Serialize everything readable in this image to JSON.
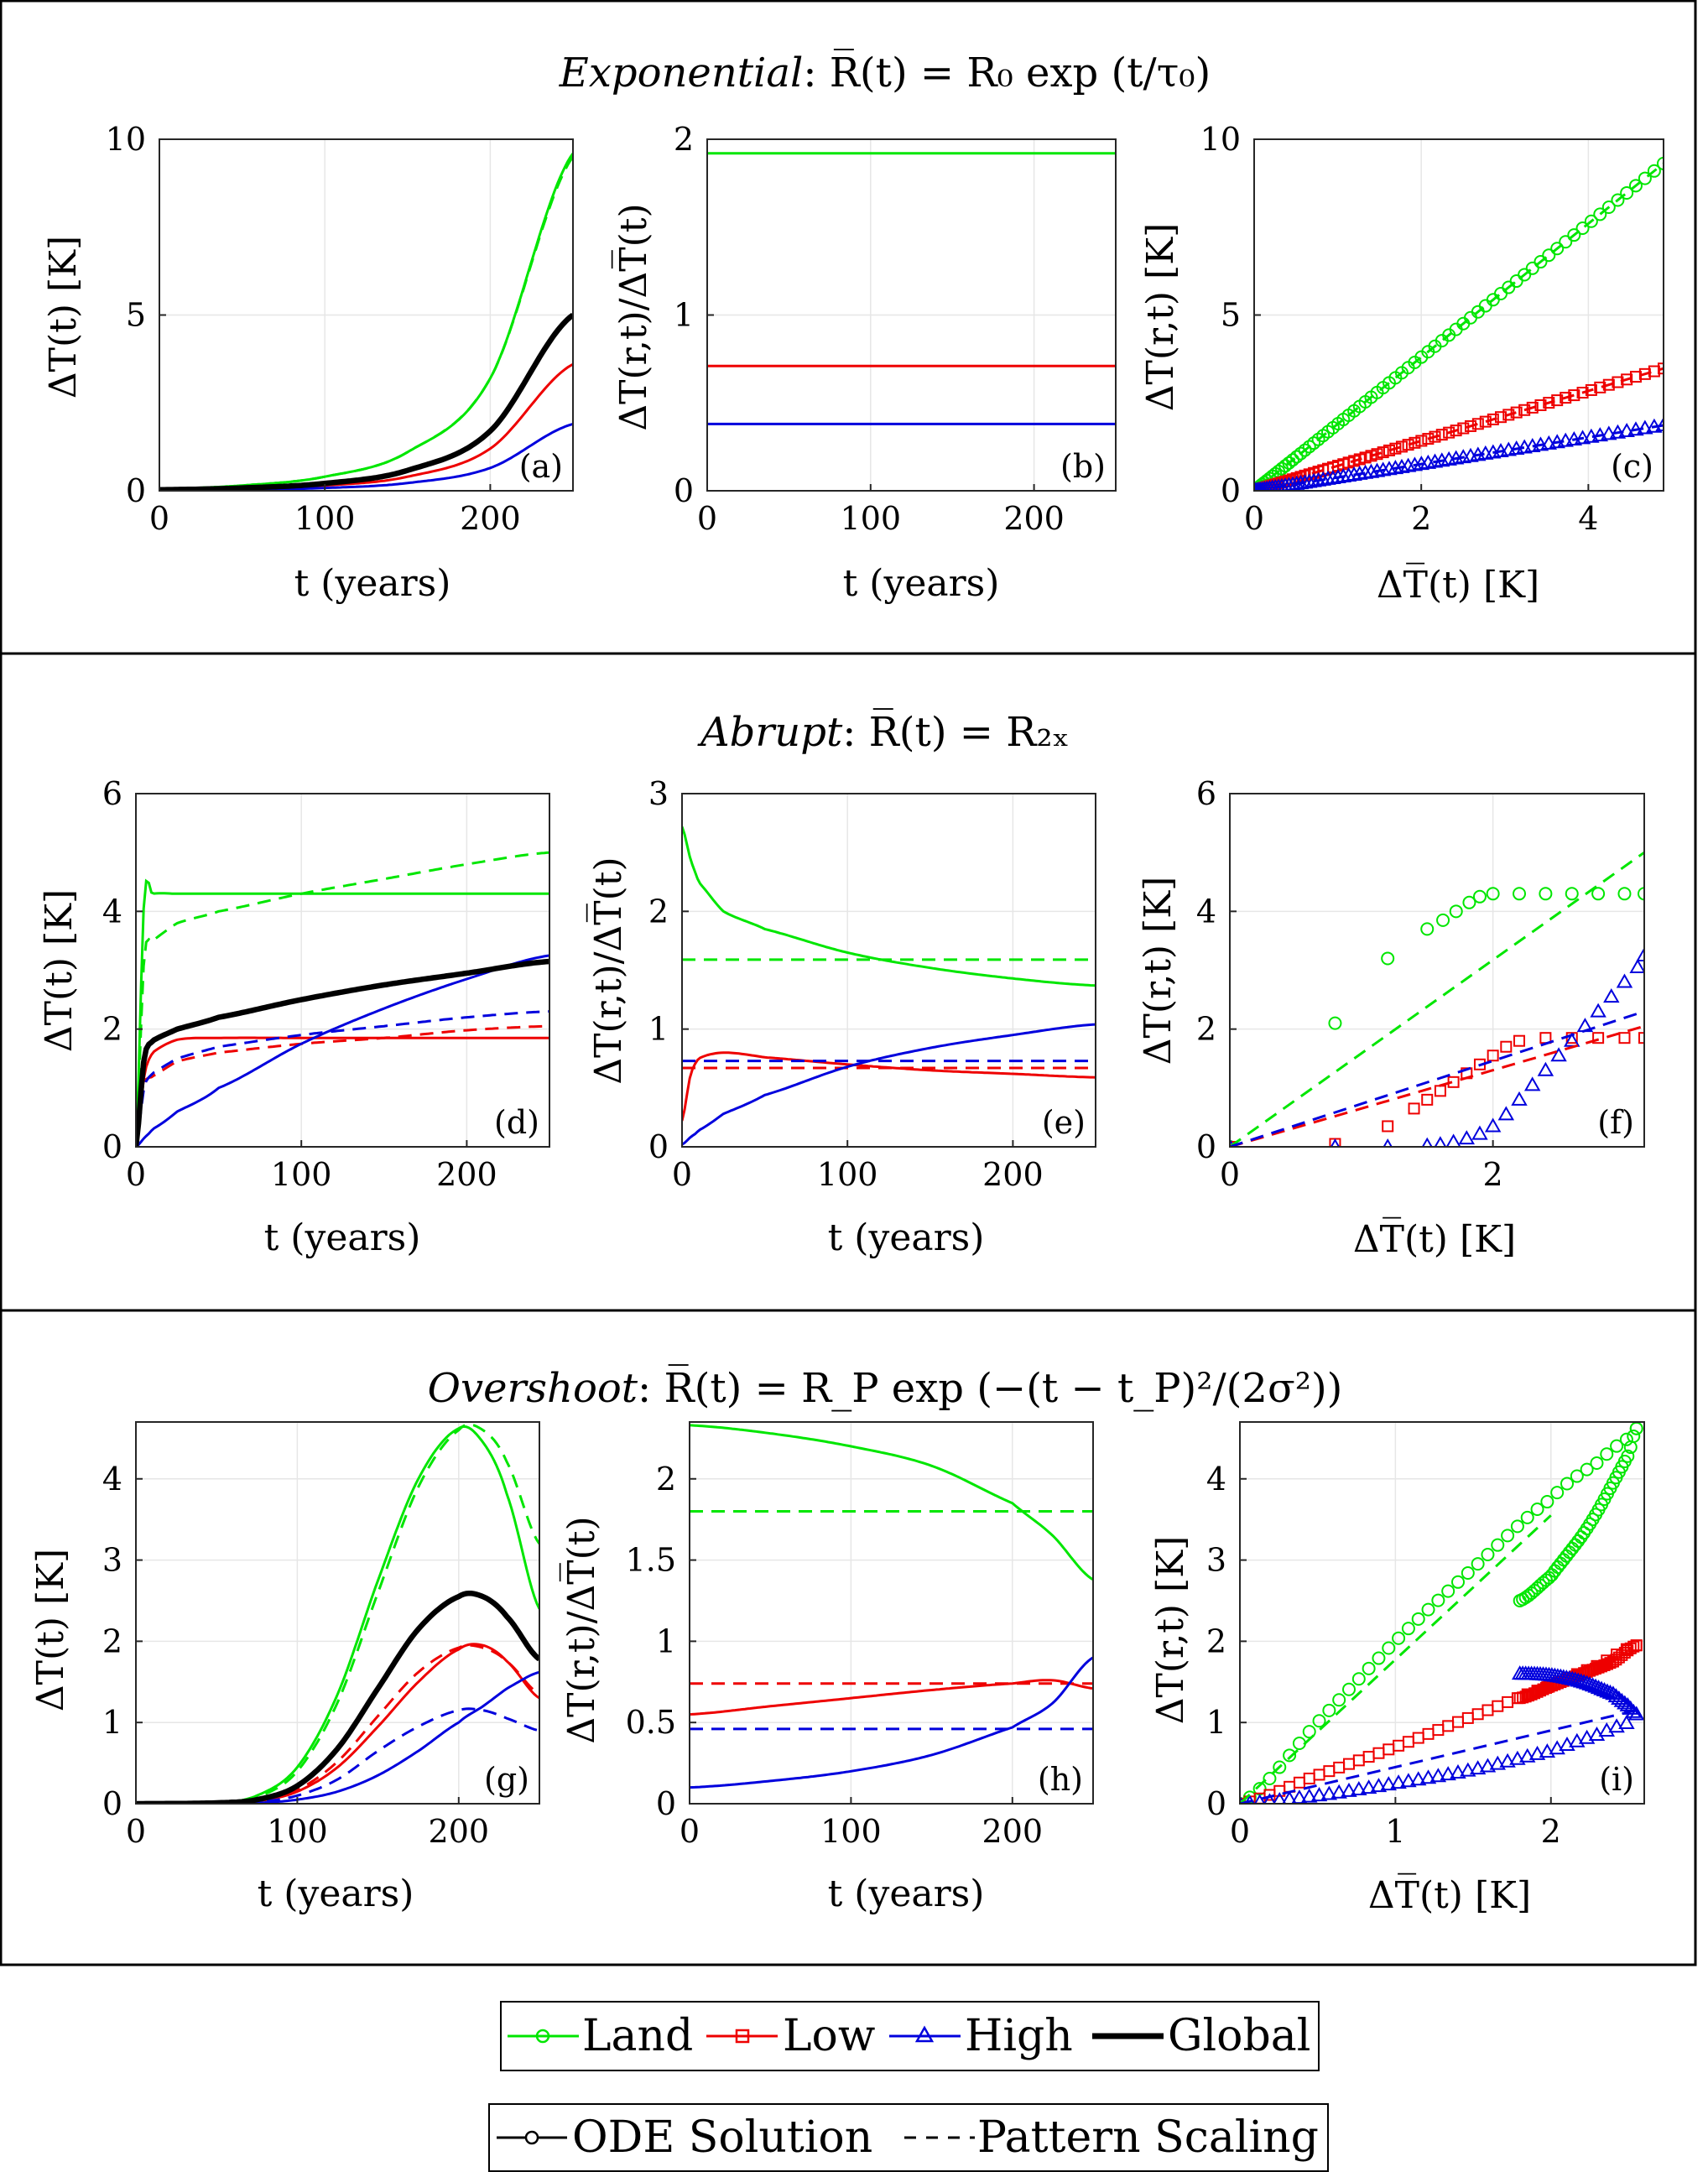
{
  "colors": {
    "land": "#00e600",
    "low": "#ee0000",
    "high": "#0000dd",
    "global": "#000000",
    "grid": "#e6e6e6"
  },
  "rows": [
    {
      "title_italic": "Exponential",
      "title_rest": ": R̅(t) = R₀ exp (t/τ₀)"
    },
    {
      "title_italic": "Abrupt",
      "title_rest": ": R̅(t) = R₂ₓ"
    },
    {
      "title_italic": "Overshoot",
      "title_rest": ": R̅(t) = R_P exp (−(t − t_P)²/(2σ²))"
    }
  ],
  "axis_labels": {
    "time_x": "t (years)",
    "global_y": "ΔT(t) [K]",
    "ratio_y": "ΔT(r,t)/ΔT̅(t)",
    "local_y": "ΔT(r,t) [K]",
    "mean_x": "ΔT̅(t) [K]"
  },
  "legend": {
    "series": [
      {
        "label": "Land",
        "marker": "circle"
      },
      {
        "label": "Low",
        "marker": "square"
      },
      {
        "label": "High",
        "marker": "triangle"
      },
      {
        "label": "Global",
        "marker": "none"
      }
    ],
    "styles": [
      {
        "label": "ODE Solution",
        "line": "solid"
      },
      {
        "label": "Pattern Scaling",
        "line": "dashed"
      }
    ]
  },
  "chart_data": [
    {
      "panel": "(a)",
      "type": "line",
      "xlim": [
        0,
        250
      ],
      "ylim": [
        0,
        10
      ],
      "xticks": [
        0,
        100,
        200
      ],
      "yticks": [
        0,
        5,
        10
      ],
      "x": [
        0,
        50,
        100,
        150,
        200,
        250
      ],
      "series": [
        {
          "name": "Land ODE",
          "values": [
            0.05,
            0.15,
            0.4,
            1.1,
            3.2,
            9.6
          ]
        },
        {
          "name": "Land Pattern",
          "values": [
            0.05,
            0.15,
            0.4,
            1.1,
            3.2,
            9.5
          ]
        },
        {
          "name": "Low",
          "values": [
            0.02,
            0.06,
            0.15,
            0.4,
            1.2,
            3.6
          ]
        },
        {
          "name": "High",
          "values": [
            0.01,
            0.03,
            0.08,
            0.22,
            0.65,
            1.9
          ]
        },
        {
          "name": "Global",
          "values": [
            0.03,
            0.08,
            0.21,
            0.58,
            1.7,
            5.0
          ]
        }
      ]
    },
    {
      "panel": "(b)",
      "type": "line",
      "xlim": [
        0,
        250
      ],
      "ylim": [
        0,
        2
      ],
      "xticks": [
        0,
        100,
        200
      ],
      "yticks": [
        0,
        1,
        2
      ],
      "x": [
        0,
        250
      ],
      "series": [
        {
          "name": "Land",
          "values": [
            1.92,
            1.92
          ]
        },
        {
          "name": "Low",
          "values": [
            0.71,
            0.71
          ]
        },
        {
          "name": "High",
          "values": [
            0.38,
            0.38
          ]
        }
      ]
    },
    {
      "panel": "(c)",
      "type": "scatter",
      "xlim": [
        0,
        4.9
      ],
      "ylim": [
        0,
        10
      ],
      "xticks": [
        0,
        2,
        4
      ],
      "yticks": [
        0,
        5,
        10
      ],
      "x": [
        0,
        4.9
      ],
      "series": [
        {
          "name": "Land",
          "slope": 1.9
        },
        {
          "name": "Low",
          "slope": 0.71
        },
        {
          "name": "High",
          "slope": 0.38
        }
      ]
    },
    {
      "panel": "(d)",
      "type": "line",
      "xlim": [
        0,
        250
      ],
      "ylim": [
        0,
        6
      ],
      "xticks": [
        0,
        100,
        200
      ],
      "yticks": [
        0,
        2,
        4,
        6
      ],
      "x": [
        0,
        5,
        10,
        25,
        50,
        100,
        150,
        200,
        250
      ],
      "series": [
        {
          "name": "Land ODE",
          "values": [
            0,
            4.2,
            4.3,
            4.3,
            4.3,
            4.3,
            4.3,
            4.3,
            4.3
          ]
        },
        {
          "name": "Land Pattern",
          "values": [
            0,
            3.2,
            3.5,
            3.8,
            4.0,
            4.3,
            4.55,
            4.8,
            5.0
          ]
        },
        {
          "name": "Low ODE",
          "values": [
            0,
            1.2,
            1.6,
            1.82,
            1.85,
            1.85,
            1.85,
            1.85,
            1.85
          ]
        },
        {
          "name": "Low Pattern",
          "values": [
            0,
            1.05,
            1.2,
            1.45,
            1.6,
            1.75,
            1.85,
            1.98,
            2.05
          ]
        },
        {
          "name": "High ODE",
          "values": [
            0,
            0.15,
            0.3,
            0.6,
            1.0,
            1.75,
            2.35,
            2.85,
            3.25
          ]
        },
        {
          "name": "High Pattern",
          "values": [
            0,
            1.0,
            1.25,
            1.5,
            1.7,
            1.9,
            2.05,
            2.2,
            2.3
          ]
        },
        {
          "name": "Global",
          "values": [
            0,
            1.5,
            1.8,
            2.0,
            2.2,
            2.5,
            2.75,
            2.95,
            3.15
          ]
        }
      ]
    },
    {
      "panel": "(e)",
      "type": "line",
      "xlim": [
        0,
        250
      ],
      "ylim": [
        0,
        3
      ],
      "xticks": [
        0,
        100,
        200
      ],
      "yticks": [
        0,
        1,
        2,
        3
      ],
      "x": [
        0,
        5,
        10,
        25,
        50,
        100,
        150,
        200,
        250
      ],
      "series": [
        {
          "name": "Land ODE",
          "values": [
            2.72,
            2.45,
            2.25,
            2.0,
            1.85,
            1.65,
            1.52,
            1.43,
            1.37
          ]
        },
        {
          "name": "Land Pattern",
          "values": [
            1.59,
            1.59,
            1.59,
            1.59,
            1.59,
            1.59,
            1.59,
            1.59,
            1.59
          ]
        },
        {
          "name": "Low ODE",
          "values": [
            0.22,
            0.6,
            0.75,
            0.8,
            0.76,
            0.7,
            0.65,
            0.62,
            0.59
          ]
        },
        {
          "name": "Low Pattern",
          "values": [
            0.67,
            0.67,
            0.67,
            0.67,
            0.67,
            0.67,
            0.67,
            0.67,
            0.67
          ]
        },
        {
          "name": "High ODE",
          "values": [
            0.02,
            0.08,
            0.14,
            0.28,
            0.44,
            0.68,
            0.84,
            0.95,
            1.04
          ]
        },
        {
          "name": "High Pattern",
          "values": [
            0.73,
            0.73,
            0.73,
            0.73,
            0.73,
            0.73,
            0.73,
            0.73,
            0.73
          ]
        }
      ]
    },
    {
      "panel": "(f)",
      "type": "scatter",
      "xlim": [
        0,
        3.15
      ],
      "ylim": [
        0,
        6
      ],
      "xticks": [
        0,
        2
      ],
      "yticks": [
        0,
        2,
        4,
        6
      ],
      "series": [
        {
          "name": "Land markers",
          "x": [
            0,
            0.8,
            1.2,
            1.5,
            1.62,
            1.72,
            1.82,
            1.9,
            2.0,
            2.2,
            2.4,
            2.6,
            2.8,
            3.0,
            3.15
          ],
          "values": [
            0,
            2.1,
            3.2,
            3.7,
            3.85,
            4.0,
            4.15,
            4.25,
            4.3,
            4.3,
            4.3,
            4.3,
            4.3,
            4.3,
            4.3
          ]
        },
        {
          "name": "Low markers",
          "x": [
            0,
            0.8,
            1.2,
            1.4,
            1.5,
            1.6,
            1.7,
            1.8,
            1.9,
            2.0,
            2.1,
            2.2,
            2.4,
            2.6,
            2.8,
            3.0,
            3.15
          ],
          "values": [
            0,
            0.05,
            0.35,
            0.65,
            0.8,
            0.95,
            1.1,
            1.25,
            1.4,
            1.55,
            1.7,
            1.8,
            1.85,
            1.85,
            1.85,
            1.85,
            1.85
          ]
        },
        {
          "name": "High markers",
          "x": [
            0,
            0.8,
            1.2,
            1.5,
            1.6,
            1.7,
            1.8,
            1.9,
            2.0,
            2.1,
            2.2,
            2.3,
            2.4,
            2.5,
            2.6,
            2.7,
            2.8,
            2.9,
            3.0,
            3.1,
            3.15
          ],
          "values": [
            0,
            0,
            0,
            0.02,
            0.04,
            0.08,
            0.14,
            0.22,
            0.35,
            0.55,
            0.8,
            1.05,
            1.3,
            1.55,
            1.8,
            2.05,
            2.3,
            2.55,
            2.8,
            3.05,
            3.25
          ]
        },
        {
          "name": "Land Pattern",
          "x": [
            0,
            3.15
          ],
          "values": [
            0,
            5.0
          ]
        },
        {
          "name": "Low Pattern",
          "x": [
            0,
            3.15
          ],
          "values": [
            0,
            2.05
          ]
        },
        {
          "name": "High Pattern",
          "x": [
            0,
            3.15
          ],
          "values": [
            0,
            2.3
          ]
        }
      ]
    },
    {
      "panel": "(g)",
      "type": "line",
      "xlim": [
        0,
        250
      ],
      "ylim": [
        0,
        4.7
      ],
      "xticks": [
        0,
        100,
        200
      ],
      "yticks": [
        0,
        1,
        2,
        3,
        4
      ],
      "x": [
        0,
        50,
        75,
        100,
        125,
        150,
        175,
        200,
        215,
        230,
        250
      ],
      "series": [
        {
          "name": "Land ODE",
          "values": [
            0,
            0.01,
            0.1,
            0.45,
            1.35,
            2.75,
            4.0,
            4.62,
            4.45,
            3.8,
            2.4
          ]
        },
        {
          "name": "Land Pattern",
          "values": [
            0,
            0.01,
            0.08,
            0.4,
            1.25,
            2.6,
            3.9,
            4.6,
            4.6,
            4.2,
            3.2
          ]
        },
        {
          "name": "Low ODE",
          "values": [
            0,
            0.0,
            0.03,
            0.15,
            0.45,
            0.95,
            1.5,
            1.9,
            1.95,
            1.75,
            1.3
          ]
        },
        {
          "name": "Low Pattern",
          "values": [
            0,
            0.0,
            0.03,
            0.17,
            0.52,
            1.08,
            1.62,
            1.92,
            1.92,
            1.75,
            1.35
          ]
        },
        {
          "name": "High ODE",
          "values": [
            0,
            0.0,
            0.01,
            0.05,
            0.15,
            0.35,
            0.65,
            1.0,
            1.2,
            1.42,
            1.62
          ]
        },
        {
          "name": "High Pattern",
          "values": [
            0,
            0.0,
            0.02,
            0.1,
            0.3,
            0.65,
            0.95,
            1.15,
            1.15,
            1.05,
            0.9
          ]
        },
        {
          "name": "Global",
          "values": [
            0,
            0.01,
            0.05,
            0.22,
            0.68,
            1.42,
            2.15,
            2.55,
            2.55,
            2.3,
            1.78
          ]
        }
      ]
    },
    {
      "panel": "(h)",
      "type": "line",
      "xlim": [
        0,
        250
      ],
      "ylim": [
        0,
        2.35
      ],
      "xticks": [
        0,
        100,
        200
      ],
      "yticks": [
        0,
        0.5,
        1,
        1.5,
        2
      ],
      "x": [
        0,
        50,
        100,
        150,
        200,
        225,
        250
      ],
      "series": [
        {
          "name": "Land ODE",
          "values": [
            2.33,
            2.28,
            2.2,
            2.08,
            1.85,
            1.65,
            1.38
          ]
        },
        {
          "name": "Land Pattern",
          "values": [
            1.8,
            1.8,
            1.8,
            1.8,
            1.8,
            1.8,
            1.8
          ]
        },
        {
          "name": "Low ODE",
          "values": [
            0.55,
            0.6,
            0.65,
            0.7,
            0.74,
            0.76,
            0.71
          ]
        },
        {
          "name": "Low Pattern",
          "values": [
            0.74,
            0.74,
            0.74,
            0.74,
            0.74,
            0.74,
            0.74
          ]
        },
        {
          "name": "High ODE",
          "values": [
            0.1,
            0.14,
            0.2,
            0.3,
            0.47,
            0.62,
            0.9
          ]
        },
        {
          "name": "High Pattern",
          "values": [
            0.46,
            0.46,
            0.46,
            0.46,
            0.46,
            0.46,
            0.46
          ]
        }
      ]
    },
    {
      "panel": "(i)",
      "type": "scatter",
      "xlim": [
        0,
        2.6
      ],
      "ylim": [
        0,
        4.7
      ],
      "xticks": [
        0,
        1,
        2
      ],
      "yticks": [
        0,
        1,
        2,
        3,
        4
      ],
      "series": [
        {
          "name": "Land up",
          "x": [
            0,
            0.5,
            1.0,
            1.5,
            2.0,
            2.3,
            2.5,
            2.55
          ],
          "values": [
            0,
            1.0,
            2.0,
            2.9,
            3.75,
            4.2,
            4.5,
            4.62
          ]
        },
        {
          "name": "Land down",
          "x": [
            2.55,
            2.5,
            2.4,
            2.3,
            2.2,
            2.1,
            2.0,
            1.8
          ],
          "values": [
            4.62,
            4.3,
            3.95,
            3.6,
            3.3,
            3.05,
            2.8,
            2.5
          ]
        },
        {
          "name": "Low up",
          "x": [
            0,
            0.5,
            1.0,
            1.5,
            2.0,
            2.3,
            2.55
          ],
          "values": [
            0,
            0.35,
            0.7,
            1.08,
            1.45,
            1.7,
            1.95
          ]
        },
        {
          "name": "Low down",
          "x": [
            2.55,
            2.4,
            2.2,
            2.0,
            1.8
          ],
          "values": [
            1.95,
            1.75,
            1.6,
            1.45,
            1.3
          ]
        },
        {
          "name": "High up",
          "x": [
            0,
            0.5,
            1.0,
            1.5,
            2.0,
            2.3,
            2.5,
            2.55
          ],
          "values": [
            0,
            0.1,
            0.25,
            0.42,
            0.65,
            0.85,
            1.0,
            1.1
          ]
        },
        {
          "name": "High down",
          "x": [
            2.55,
            2.5,
            2.4,
            2.2,
            2.0,
            1.8
          ],
          "values": [
            1.1,
            1.2,
            1.35,
            1.5,
            1.58,
            1.6
          ]
        },
        {
          "name": "Land Pattern",
          "x": [
            0,
            2.0
          ],
          "values": [
            0,
            3.55
          ]
        },
        {
          "name": "High Pattern",
          "x": [
            0,
            2.55
          ],
          "values": [
            0,
            1.15
          ]
        }
      ]
    }
  ]
}
